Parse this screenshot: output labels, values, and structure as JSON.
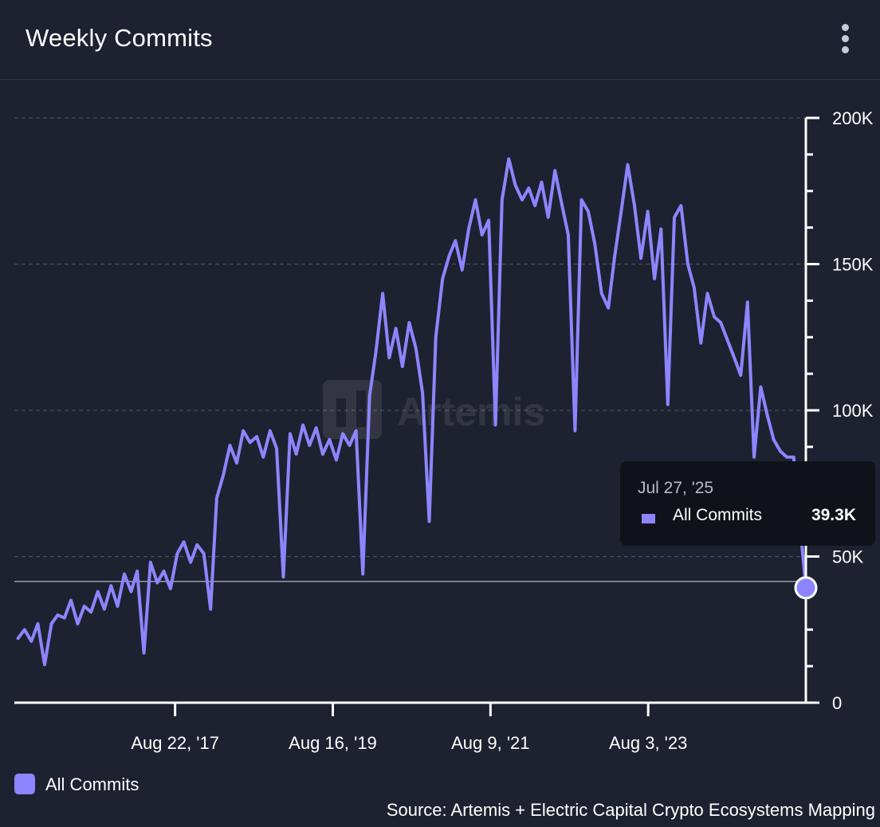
{
  "header": {
    "title": "Weekly Commits",
    "menu_icon": "kebab-menu-icon"
  },
  "watermark": "Artemis",
  "tooltip": {
    "date": "Jul 27, '25",
    "series": "All Commits",
    "value": "39.3K"
  },
  "legend": {
    "label": "All Commits"
  },
  "source": "Source: Artemis + Electric Capital Crypto Ecosystems Mapping",
  "colors": {
    "background": "#1e2130",
    "series": "#8d85ff",
    "grid": "#4a4e5e",
    "axis": "#ffffff",
    "tooltip_bg": "#10121a"
  },
  "chart_data": {
    "type": "line",
    "title": "Weekly Commits",
    "xlabel": "",
    "ylabel": "",
    "ylim": [
      0,
      200000
    ],
    "y_ticks": [
      0,
      50000,
      100000,
      150000,
      200000
    ],
    "y_tick_labels": [
      "0",
      "50K",
      "100K",
      "150K",
      "200K"
    ],
    "x_ticks": [
      "2017-08-22",
      "2019-08-16",
      "2021-08-09",
      "2023-08-03"
    ],
    "x_tick_labels": [
      "Aug 22, '17",
      "Aug 16, '19",
      "Aug 9, '21",
      "Aug 3, '23"
    ],
    "grid": "horizontal dashed",
    "legend_position": "bottom-left",
    "crosshair_value": 41500,
    "series": [
      {
        "name": "All Commits",
        "points": [
          [
            "2015-09-01",
            22000
          ],
          [
            "2015-10-01",
            25000
          ],
          [
            "2015-11-01",
            21000
          ],
          [
            "2015-12-01",
            27000
          ],
          [
            "2016-01-01",
            13000
          ],
          [
            "2016-02-01",
            27000
          ],
          [
            "2016-03-01",
            30000
          ],
          [
            "2016-04-01",
            29000
          ],
          [
            "2016-05-01",
            35000
          ],
          [
            "2016-06-01",
            27000
          ],
          [
            "2016-07-01",
            33000
          ],
          [
            "2016-08-01",
            31000
          ],
          [
            "2016-09-01",
            38000
          ],
          [
            "2016-10-01",
            32000
          ],
          [
            "2016-11-01",
            40000
          ],
          [
            "2016-12-01",
            33000
          ],
          [
            "2017-01-01",
            44000
          ],
          [
            "2017-02-01",
            38000
          ],
          [
            "2017-03-01",
            45000
          ],
          [
            "2017-04-01",
            17000
          ],
          [
            "2017-05-01",
            48000
          ],
          [
            "2017-06-01",
            41000
          ],
          [
            "2017-07-01",
            45000
          ],
          [
            "2017-08-01",
            39000
          ],
          [
            "2017-09-01",
            51000
          ],
          [
            "2017-10-01",
            55000
          ],
          [
            "2017-11-01",
            48000
          ],
          [
            "2017-12-01",
            54000
          ],
          [
            "2018-01-01",
            51000
          ],
          [
            "2018-02-01",
            32000
          ],
          [
            "2018-03-01",
            70000
          ],
          [
            "2018-04-01",
            78000
          ],
          [
            "2018-05-01",
            88000
          ],
          [
            "2018-06-01",
            82000
          ],
          [
            "2018-07-01",
            93000
          ],
          [
            "2018-08-01",
            89000
          ],
          [
            "2018-09-01",
            91000
          ],
          [
            "2018-10-01",
            84000
          ],
          [
            "2018-11-01",
            93000
          ],
          [
            "2018-12-01",
            87000
          ],
          [
            "2019-01-01",
            43000
          ],
          [
            "2019-02-01",
            92000
          ],
          [
            "2019-03-01",
            85000
          ],
          [
            "2019-04-01",
            95000
          ],
          [
            "2019-05-01",
            88000
          ],
          [
            "2019-06-01",
            94000
          ],
          [
            "2019-07-01",
            85000
          ],
          [
            "2019-08-01",
            90000
          ],
          [
            "2019-09-01",
            83000
          ],
          [
            "2019-10-01",
            92000
          ],
          [
            "2019-11-01",
            88000
          ],
          [
            "2019-12-01",
            93000
          ],
          [
            "2020-01-01",
            44000
          ],
          [
            "2020-02-01",
            105000
          ],
          [
            "2020-03-01",
            120000
          ],
          [
            "2020-04-01",
            140000
          ],
          [
            "2020-05-01",
            118000
          ],
          [
            "2020-06-01",
            128000
          ],
          [
            "2020-07-01",
            115000
          ],
          [
            "2020-08-01",
            130000
          ],
          [
            "2020-09-01",
            121000
          ],
          [
            "2020-10-01",
            106000
          ],
          [
            "2020-11-01",
            62000
          ],
          [
            "2020-12-01",
            125000
          ],
          [
            "2021-01-01",
            145000
          ],
          [
            "2021-02-01",
            153000
          ],
          [
            "2021-03-01",
            158000
          ],
          [
            "2021-04-01",
            148000
          ],
          [
            "2021-05-01",
            162000
          ],
          [
            "2021-06-01",
            172000
          ],
          [
            "2021-07-01",
            160000
          ],
          [
            "2021-08-01",
            165000
          ],
          [
            "2021-09-01",
            95000
          ],
          [
            "2021-10-01",
            172000
          ],
          [
            "2021-11-01",
            186000
          ],
          [
            "2021-12-01",
            177000
          ],
          [
            "2022-01-01",
            172000
          ],
          [
            "2022-02-01",
            176000
          ],
          [
            "2022-03-01",
            170000
          ],
          [
            "2022-04-01",
            178000
          ],
          [
            "2022-05-01",
            166000
          ],
          [
            "2022-06-01",
            182000
          ],
          [
            "2022-07-01",
            171000
          ],
          [
            "2022-08-01",
            160000
          ],
          [
            "2022-09-01",
            93000
          ],
          [
            "2022-10-01",
            172000
          ],
          [
            "2022-11-01",
            168000
          ],
          [
            "2022-12-01",
            157000
          ],
          [
            "2023-01-01",
            140000
          ],
          [
            "2023-02-01",
            135000
          ],
          [
            "2023-03-01",
            152000
          ],
          [
            "2023-04-01",
            168000
          ],
          [
            "2023-05-01",
            184000
          ],
          [
            "2023-06-01",
            170000
          ],
          [
            "2023-07-01",
            152000
          ],
          [
            "2023-08-01",
            168000
          ],
          [
            "2023-09-01",
            145000
          ],
          [
            "2023-10-01",
            162000
          ],
          [
            "2023-11-01",
            102000
          ],
          [
            "2023-12-01",
            166000
          ],
          [
            "2024-01-01",
            170000
          ],
          [
            "2024-02-01",
            150000
          ],
          [
            "2024-03-01",
            142000
          ],
          [
            "2024-04-01",
            123000
          ],
          [
            "2024-05-01",
            140000
          ],
          [
            "2024-06-01",
            132000
          ],
          [
            "2024-07-01",
            130000
          ],
          [
            "2024-08-01",
            124000
          ],
          [
            "2024-09-01",
            118000
          ],
          [
            "2024-10-01",
            112000
          ],
          [
            "2024-11-01",
            137000
          ],
          [
            "2024-12-01",
            84000
          ],
          [
            "2025-01-01",
            108000
          ],
          [
            "2025-02-01",
            98000
          ],
          [
            "2025-03-01",
            90000
          ],
          [
            "2025-04-01",
            86000
          ],
          [
            "2025-05-01",
            84000
          ],
          [
            "2025-06-01",
            84000
          ],
          [
            "2025-07-01",
            60000
          ],
          [
            "2025-07-27",
            39300
          ]
        ]
      }
    ]
  }
}
